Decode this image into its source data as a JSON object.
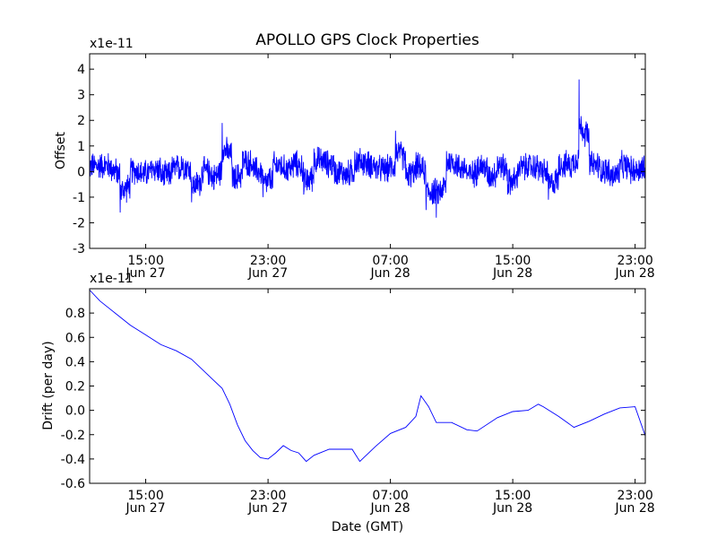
{
  "title": "APOLLO GPS Clock Properties",
  "colors": {
    "series": "#0000ff",
    "axes": "#000000",
    "background": "#ffffff"
  },
  "chart_data": [
    {
      "type": "line",
      "title": "APOLLO GPS Clock Properties",
      "ylabel": "Offset",
      "xlabel": "",
      "offset_text": "x1e-11",
      "ylim": [
        -3,
        4.6
      ],
      "yticks": [
        -3,
        -2,
        -1,
        0,
        1,
        2,
        3,
        4
      ],
      "xlim": [
        "Jun 27 11:20",
        "Jun 28 23:40"
      ],
      "xticks": [
        {
          "time": "Jun 27 15:00",
          "label1": "15:00",
          "label2": "Jun 27"
        },
        {
          "time": "Jun 27 23:00",
          "label1": "23:00",
          "label2": "Jun 27"
        },
        {
          "time": "Jun 28 07:00",
          "label1": "07:00",
          "label2": "Jun 28"
        },
        {
          "time": "Jun 28 15:00",
          "label1": "15:00",
          "label2": "Jun 28"
        },
        {
          "time": "Jun 28 23:00",
          "label1": "23:00",
          "label2": "Jun 28"
        }
      ],
      "grid": false,
      "series": [
        {
          "x": [
            "Jun 27 11:20",
            "Jun 27 12:00",
            "Jun 27 12:40",
            "Jun 27 13:20",
            "Jun 27 14:00",
            "Jun 27 14:40",
            "Jun 27 15:20",
            "Jun 27 16:00",
            "Jun 27 16:40",
            "Jun 27 17:20",
            "Jun 27 18:00",
            "Jun 27 18:40",
            "Jun 27 19:20",
            "Jun 27 20:00",
            "Jun 27 20:40",
            "Jun 27 21:20",
            "Jun 27 22:00",
            "Jun 27 22:40",
            "Jun 27 23:20",
            "Jun 28 00:00",
            "Jun 28 00:40",
            "Jun 28 01:20",
            "Jun 28 02:00",
            "Jun 28 02:40",
            "Jun 28 03:20",
            "Jun 28 04:00",
            "Jun 28 04:40",
            "Jun 28 05:20",
            "Jun 28 06:00",
            "Jun 28 06:40",
            "Jun 28 07:20",
            "Jun 28 08:00",
            "Jun 28 08:40",
            "Jun 28 09:20",
            "Jun 28 10:00",
            "Jun 28 10:40",
            "Jun 28 11:20",
            "Jun 28 12:00",
            "Jun 28 12:40",
            "Jun 28 13:20",
            "Jun 28 14:00",
            "Jun 28 14:40",
            "Jun 28 15:20",
            "Jun 28 16:00",
            "Jun 28 16:40",
            "Jun 28 17:20",
            "Jun 28 18:00",
            "Jun 28 18:40",
            "Jun 28 19:20",
            "Jun 28 20:00",
            "Jun 28 20:40",
            "Jun 28 21:20",
            "Jun 28 22:00",
            "Jun 28 22:40",
            "Jun 28 23:20",
            "Jun 28 23:40"
          ],
          "y": [
            0.4,
            0.5,
            0.3,
            -1.6,
            0.1,
            -0.2,
            0.3,
            -0.4,
            0.2,
            0.6,
            -1.2,
            0.1,
            -0.6,
            1.9,
            -0.6,
            0.8,
            0.2,
            -1.0,
            0.5,
            0.2,
            0.7,
            -0.9,
            0.9,
            0.7,
            0.0,
            -0.3,
            0.8,
            0.6,
            0.2,
            0.1,
            1.6,
            -0.3,
            0.5,
            -1.5,
            -1.8,
            0.8,
            0.4,
            -0.3,
            0.5,
            -0.4,
            0.6,
            -0.9,
            0.3,
            0.4,
            0.2,
            -1.1,
            0.6,
            0.3,
            3.6,
            0.6,
            0.2,
            -0.4,
            0.5,
            0.1,
            0.3,
            0.6
          ],
          "noise_amplitude": 0.45
        }
      ]
    },
    {
      "type": "line",
      "title": "",
      "ylabel": "Drift (per day)",
      "xlabel": "Date (GMT)",
      "offset_text": "x1e-11",
      "ylim": [
        -0.6,
        1.0
      ],
      "yticks": [
        -0.6,
        -0.4,
        -0.2,
        0.0,
        0.2,
        0.4,
        0.6,
        0.8
      ],
      "ytick_labels": [
        "-0.6",
        "-0.4",
        "-0.2",
        "0.0",
        "0.2",
        "0.4",
        "0.6",
        "0.8"
      ],
      "xlim": [
        "Jun 27 11:20",
        "Jun 28 23:40"
      ],
      "xticks": [
        {
          "time": "Jun 27 15:00",
          "label1": "15:00",
          "label2": "Jun 27"
        },
        {
          "time": "Jun 27 23:00",
          "label1": "23:00",
          "label2": "Jun 27"
        },
        {
          "time": "Jun 28 07:00",
          "label1": "07:00",
          "label2": "Jun 28"
        },
        {
          "time": "Jun 28 15:00",
          "label1": "15:00",
          "label2": "Jun 28"
        },
        {
          "time": "Jun 28 23:00",
          "label1": "23:00",
          "label2": "Jun 28"
        }
      ],
      "grid": false,
      "series": [
        {
          "x": [
            "Jun 27 11:20",
            "Jun 27 12:00",
            "Jun 27 13:00",
            "Jun 27 14:00",
            "Jun 27 15:00",
            "Jun 27 16:00",
            "Jun 27 17:00",
            "Jun 27 18:00",
            "Jun 27 19:00",
            "Jun 27 20:00",
            "Jun 27 20:30",
            "Jun 27 21:00",
            "Jun 27 21:30",
            "Jun 27 22:00",
            "Jun 27 22:30",
            "Jun 27 23:00",
            "Jun 27 23:30",
            "Jun 28 00:00",
            "Jun 28 00:30",
            "Jun 28 01:00",
            "Jun 28 01:30",
            "Jun 28 02:00",
            "Jun 28 03:00",
            "Jun 28 04:00",
            "Jun 28 04:30",
            "Jun 28 05:00",
            "Jun 28 06:00",
            "Jun 28 07:00",
            "Jun 28 08:00",
            "Jun 28 08:40",
            "Jun 28 09:00",
            "Jun 28 09:30",
            "Jun 28 10:00",
            "Jun 28 11:00",
            "Jun 28 12:00",
            "Jun 28 12:40",
            "Jun 28 14:00",
            "Jun 28 15:00",
            "Jun 28 16:00",
            "Jun 28 16:40",
            "Jun 28 17:00",
            "Jun 28 18:00",
            "Jun 28 19:00",
            "Jun 28 20:00",
            "Jun 28 21:00",
            "Jun 28 22:00",
            "Jun 28 23:00",
            "Jun 28 23:40"
          ],
          "y": [
            0.99,
            0.9,
            0.8,
            0.7,
            0.62,
            0.54,
            0.49,
            0.42,
            0.3,
            0.18,
            0.05,
            -0.12,
            -0.25,
            -0.33,
            -0.39,
            -0.4,
            -0.35,
            -0.29,
            -0.33,
            -0.35,
            -0.42,
            -0.37,
            -0.32,
            -0.32,
            -0.32,
            -0.42,
            -0.3,
            -0.19,
            -0.14,
            -0.05,
            0.12,
            0.03,
            -0.1,
            -0.1,
            -0.16,
            -0.17,
            -0.06,
            -0.01,
            0.0,
            0.05,
            0.03,
            -0.05,
            -0.14,
            -0.09,
            -0.03,
            0.02,
            0.03,
            -0.21
          ]
        }
      ]
    }
  ]
}
